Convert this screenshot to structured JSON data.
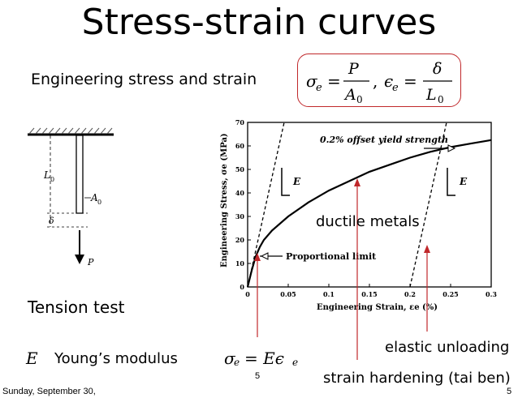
{
  "title": "Stress-strain curves",
  "subtitle": "Engineering stress and strain",
  "eq_sigma_lhs": "σ",
  "eq_sigma_sub": "e",
  "eq_P": "P",
  "eq_A0": "A",
  "eq_zero": "0",
  "eq_eps_lhs": "ϵ",
  "eq_delta": "δ",
  "eq_L0": "L",
  "eq_comma": ",",
  "tension_test": "Tension test",
  "youngs_symbol": "E",
  "youngs_label": "Young’s modulus",
  "hooke_eq": "σ",
  "hooke_rhs": "= Eϵ",
  "ductile": "ductile metals",
  "elastic_unloading": "elastic unloading",
  "strain_hardening": "strain hardening (tai ben)",
  "footer_date": "Sunday, September 30,",
  "page_number": "5",
  "page_number_center": "5",
  "specimen": {
    "L0": "L",
    "L0_sub": "0",
    "A0": "A",
    "A0_sub": "0",
    "delta": "δ",
    "P": "P"
  },
  "chart_data": {
    "type": "line",
    "ylabel": "Engineering Stress, σe (MPa)",
    "xlabel": "Engineering Strain, εe (%)",
    "x_ticks": [
      "0",
      "0.05",
      "0.1",
      "0.15",
      "0.2",
      "0.25",
      "0.3"
    ],
    "y_ticks": [
      "0",
      "10",
      "20",
      "30",
      "40",
      "50",
      "60",
      "70"
    ],
    "xlim": [
      0,
      0.3
    ],
    "ylim": [
      0,
      70
    ],
    "annotations": [
      "0.2% offset yield strength",
      "Proportional limit",
      "E",
      "E"
    ],
    "series": [
      {
        "x": [
          0,
          0.005,
          0.01,
          0.015,
          0.02,
          0.03,
          0.05,
          0.075,
          0.1,
          0.125,
          0.15,
          0.175,
          0.2,
          0.225,
          0.25,
          0.275,
          0.3
        ],
        "y": [
          0,
          7,
          13,
          17,
          20,
          24,
          30,
          36,
          41,
          45,
          49,
          52,
          55,
          57.5,
          59.5,
          61,
          62.5
        ]
      }
    ],
    "offset_lines": [
      {
        "x": [
          0,
          0.045
        ],
        "y": [
          0,
          70
        ]
      },
      {
        "x": [
          0.2,
          0.245
        ],
        "y": [
          0,
          70
        ]
      }
    ],
    "colors": {
      "axis": "#000000",
      "arrow": "#c0282b"
    }
  }
}
